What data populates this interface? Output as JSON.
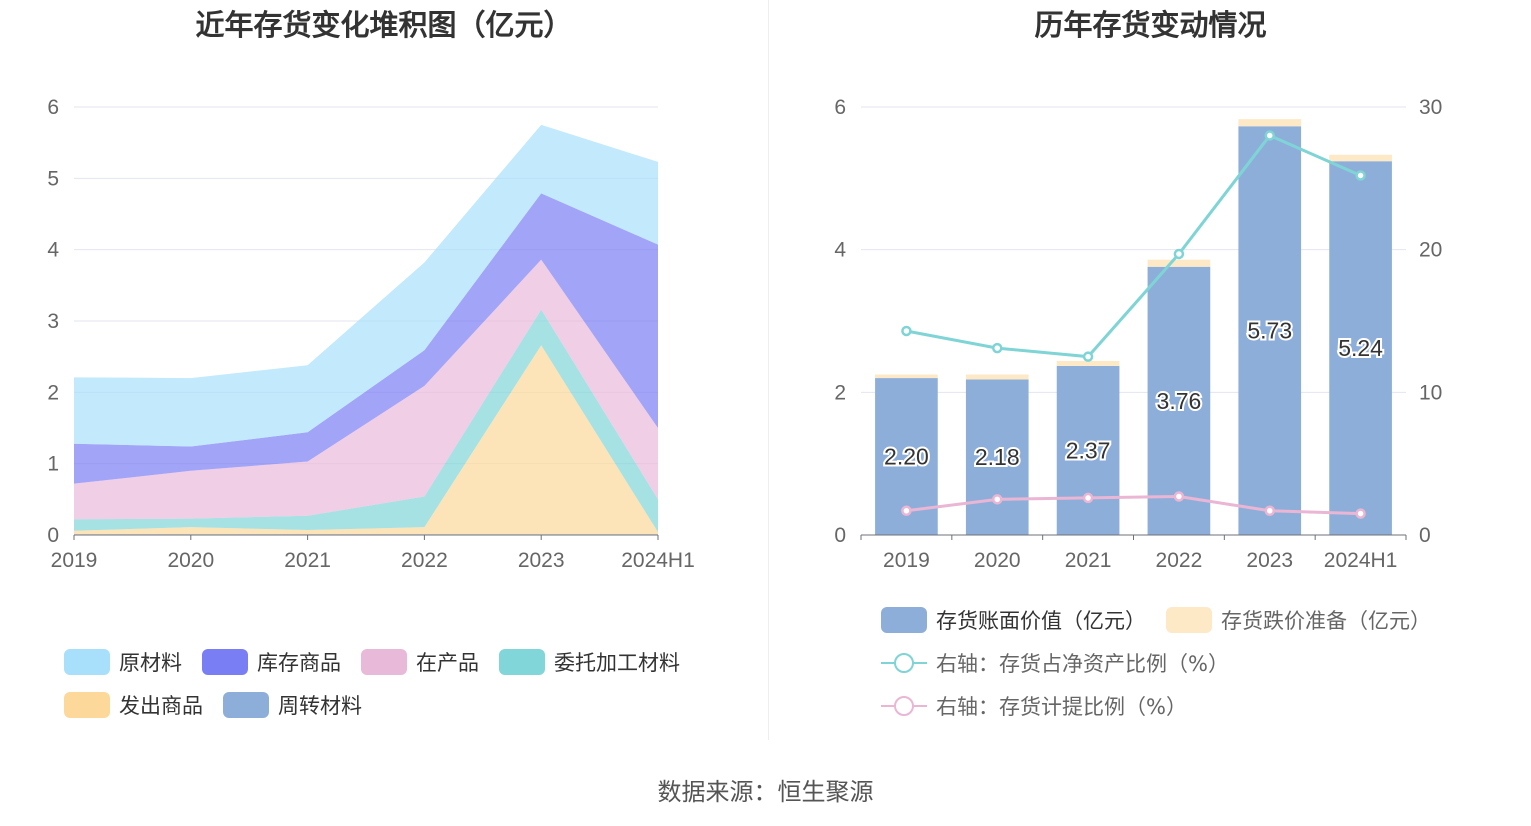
{
  "left_chart": {
    "title": "近年存货变化堆积图（亿元）",
    "legend": [
      {
        "label": "原材料",
        "color": "#a8e0fb"
      },
      {
        "label": "库存商品",
        "color": "#7a7ef5"
      },
      {
        "label": "在产品",
        "color": "#e9b9da"
      },
      {
        "label": "委托加工材料",
        "color": "#80d6d8"
      },
      {
        "label": "发出商品",
        "color": "#fcd99a"
      },
      {
        "label": "周转材料",
        "color": "#8eaeda"
      }
    ]
  },
  "right_chart": {
    "title": "历年存货变动情况",
    "legend": [
      {
        "label": "存货账面价值（亿元）",
        "color": "#8eaeda",
        "kind": "bar"
      },
      {
        "label": "存货跌价准备（亿元）",
        "color": "#fde9c6",
        "kind": "bar"
      },
      {
        "label": "右轴：存货占净资产比例（%）",
        "color": "#7fd4d6",
        "kind": "line"
      },
      {
        "label": "右轴：存货计提比例（%）",
        "color": "#eab6d4",
        "kind": "line"
      }
    ]
  },
  "chart_data": [
    {
      "type": "area",
      "stacked": true,
      "title": "近年存货变化堆积图（亿元）",
      "categories": [
        "2019",
        "2020",
        "2021",
        "2022",
        "2023",
        "2024H1"
      ],
      "ylim": [
        0,
        6
      ],
      "yticks": [
        0,
        1,
        2,
        3,
        4,
        5,
        6
      ],
      "grid": true,
      "legend_position": "bottom",
      "series": [
        {
          "name": "周转材料",
          "color": "#8eaeda",
          "values": [
            0.01,
            0.01,
            0.01,
            0.01,
            0.01,
            0.01
          ]
        },
        {
          "name": "发出商品",
          "color": "#fcd99a",
          "values": [
            0.05,
            0.1,
            0.06,
            0.1,
            2.65,
            0.03
          ]
        },
        {
          "name": "委托加工材料",
          "color": "#80d6d8",
          "values": [
            0.16,
            0.12,
            0.2,
            0.43,
            0.5,
            0.46
          ]
        },
        {
          "name": "在产品",
          "color": "#e9b9da",
          "values": [
            0.5,
            0.67,
            0.76,
            1.55,
            0.7,
            1.0
          ]
        },
        {
          "name": "库存商品",
          "color": "#7a7ef5",
          "values": [
            0.56,
            0.34,
            0.41,
            0.5,
            0.93,
            2.57
          ]
        },
        {
          "name": "原材料",
          "color": "#a8e0fb",
          "values": [
            0.93,
            0.96,
            0.94,
            1.23,
            0.96,
            1.16
          ]
        }
      ]
    },
    {
      "type": "bar",
      "stacked": true,
      "title": "历年存货变动情况",
      "categories": [
        "2019",
        "2020",
        "2021",
        "2022",
        "2023",
        "2024H1"
      ],
      "ylim": [
        0,
        6
      ],
      "yticks": [
        0,
        2,
        4,
        6
      ],
      "y2lim": [
        0,
        30
      ],
      "y2ticks": [
        0,
        10,
        20,
        30
      ],
      "grid": true,
      "legend_position": "bottom",
      "series": [
        {
          "name": "存货账面价值（亿元）",
          "color": "#8eaeda",
          "axis": "left",
          "values": [
            2.2,
            2.18,
            2.37,
            3.76,
            5.73,
            5.24
          ],
          "labels": [
            "2.20",
            "2.18",
            "2.37",
            "3.76",
            "5.73",
            "5.24"
          ]
        },
        {
          "name": "存货跌价准备（亿元）",
          "color": "#fde9c6",
          "axis": "left",
          "values": [
            0.05,
            0.07,
            0.07,
            0.1,
            0.1,
            0.09
          ]
        },
        {
          "name": "右轴：存货占净资产比例（%）",
          "color": "#7fd4d6",
          "axis": "right",
          "type": "line",
          "values": [
            14.3,
            13.1,
            12.5,
            19.7,
            28.0,
            25.2
          ]
        },
        {
          "name": "右轴：存货计提比例（%）",
          "color": "#eab6d4",
          "axis": "right",
          "type": "line",
          "values": [
            1.7,
            2.5,
            2.6,
            2.7,
            1.7,
            1.5
          ]
        }
      ]
    }
  ],
  "source": "数据来源：恒生聚源"
}
